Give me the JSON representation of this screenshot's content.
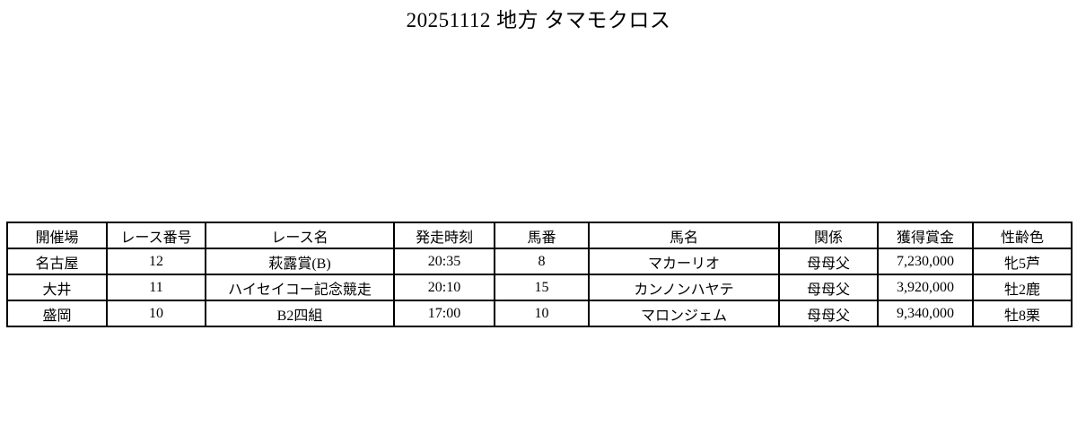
{
  "page": {
    "title": "20251112 地方 タマモクロス"
  },
  "table": {
    "headers": [
      "開催場",
      "レース番号",
      "レース名",
      "発走時刻",
      "馬番",
      "馬名",
      "関係",
      "獲得賞金",
      "性齢色"
    ],
    "rows": [
      [
        "名古屋",
        "12",
        "萩露賞(B)",
        "20:35",
        "8",
        "マカーリオ",
        "母母父",
        "7,230,000",
        "牝5芦"
      ],
      [
        "大井",
        "11",
        "ハイセイコー記念競走",
        "20:10",
        "15",
        "カンノンハヤテ",
        "母母父",
        "3,920,000",
        "牡2鹿"
      ],
      [
        "盛岡",
        "10",
        "B2四組",
        "17:00",
        "10",
        "マロンジェム",
        "母母父",
        "9,340,000",
        "牡8栗"
      ]
    ]
  },
  "colors": {
    "background": "#ffffff",
    "text": "#000000",
    "border": "#000000"
  }
}
